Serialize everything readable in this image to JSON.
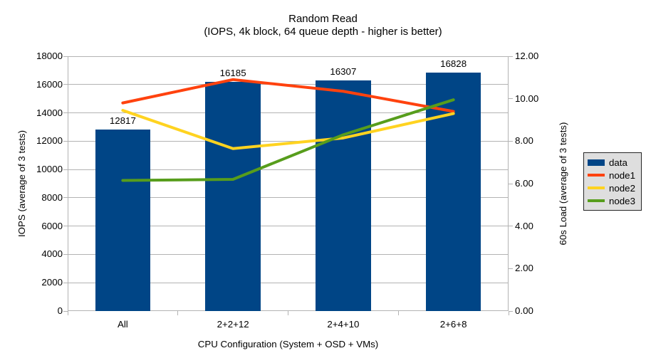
{
  "title": "Random Read",
  "subtitle": "(IOPS, 4k block, 64 queue depth - higher is better)",
  "colors": {
    "background": "#FFFFFF",
    "text": "#000000",
    "grid": "#B3B3B3",
    "axis": "#B3B3B3",
    "legend_bg": "#DEDEDE",
    "legend_border": "#262626"
  },
  "chart_data": {
    "type": "bar",
    "subtype": "combo-bar-line-dual-axis",
    "title": "Random Read",
    "subtitle": "(IOPS, 4k block, 64 queue depth - higher is better)",
    "xlabel": "CPU Configuration (System + OSD + VMs)",
    "categories": [
      "All",
      "2+2+12",
      "2+4+10",
      "2+6+8"
    ],
    "left_axis": {
      "title": "IOPS (average of 3 tests)",
      "min": 0,
      "max": 18000,
      "step": 2000,
      "tick_labels": [
        "0",
        "2000",
        "4000",
        "6000",
        "8000",
        "10000",
        "12000",
        "14000",
        "16000",
        "18000"
      ]
    },
    "right_axis": {
      "title": "60s Load (average of 3 tests)",
      "min": 0,
      "max": 12,
      "step": 2,
      "tick_labels": [
        "0.00",
        "2.00",
        "4.00",
        "6.00",
        "8.00",
        "10.00",
        "12.00"
      ]
    },
    "bar_series": {
      "name": "data",
      "color": "#004586",
      "axis": "left",
      "values": [
        12817,
        16185,
        16307,
        16828
      ],
      "data_labels": [
        "12817",
        "16185",
        "16307",
        "16828"
      ]
    },
    "line_series": [
      {
        "name": "node1",
        "color": "#FF420E",
        "axis": "right",
        "values": [
          9.8,
          10.9,
          10.35,
          9.4
        ]
      },
      {
        "name": "node2",
        "color": "#FFD320",
        "axis": "right",
        "values": [
          9.45,
          7.65,
          8.15,
          9.3
        ]
      },
      {
        "name": "node3",
        "color": "#579D1C",
        "axis": "right",
        "values": [
          6.15,
          6.2,
          8.3,
          9.95
        ]
      }
    ],
    "grid": "horizontal",
    "legend_position": "right-middle",
    "legend": [
      {
        "label": "data",
        "swatch": "bar",
        "color": "#004586"
      },
      {
        "label": "node1",
        "swatch": "line",
        "color": "#FF420E"
      },
      {
        "label": "node2",
        "swatch": "line",
        "color": "#FFD320"
      },
      {
        "label": "node3",
        "swatch": "line",
        "color": "#579D1C"
      }
    ]
  }
}
